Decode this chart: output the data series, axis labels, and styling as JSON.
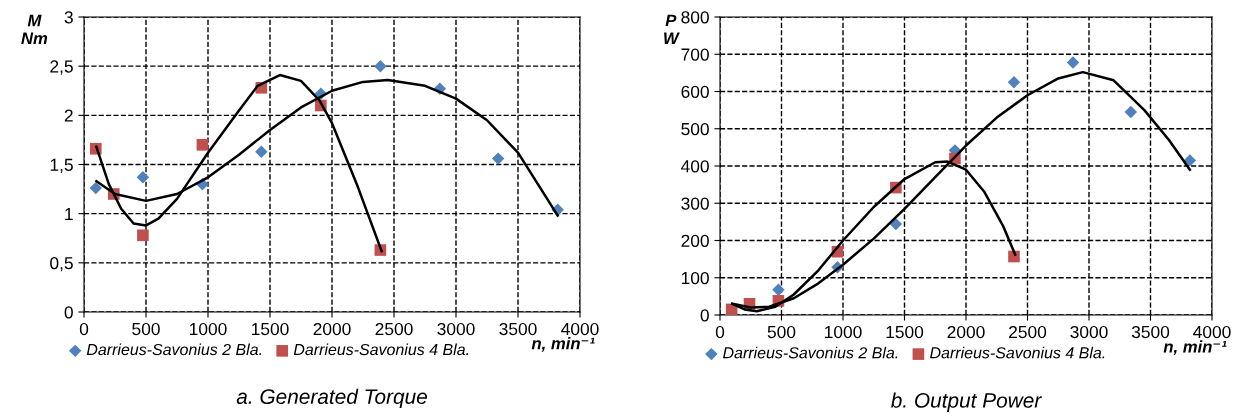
{
  "chart_data": [
    {
      "type": "scatter",
      "title": "a. Generated Torque",
      "xlabel": "n, min⁻¹",
      "ylabel": "M\nNm",
      "xlim": [
        0,
        4000
      ],
      "xticks": [
        0,
        500,
        1000,
        1500,
        2000,
        2500,
        3000,
        3500,
        4000
      ],
      "ylim": [
        0,
        3
      ],
      "yticks": [
        0,
        {
          "value": 0.5,
          "label": "0,5"
        },
        1,
        {
          "value": 1.5,
          "label": "1,5"
        },
        2,
        {
          "value": 2.5,
          "label": "2,5"
        },
        3
      ],
      "grid": true,
      "legend": "bottom",
      "series": [
        {
          "name": "Darrieus-Savonius 2 Bla.",
          "color": "#4f81bd",
          "marker": "diamond",
          "x": [
            95,
            475,
            955,
            1430,
            1910,
            2390,
            2870,
            3340,
            3820
          ],
          "values": [
            1.26,
            1.37,
            1.3,
            1.63,
            2.22,
            2.5,
            2.27,
            1.56,
            1.04
          ]
        },
        {
          "name": "Darrieus-Savonius 4 Bla.",
          "color": "#c0504d",
          "marker": "square",
          "x": [
            95,
            240,
            475,
            955,
            1430,
            1910,
            2390
          ],
          "values": [
            1.66,
            1.2,
            0.78,
            1.7,
            2.28,
            2.1,
            0.63
          ]
        },
        {
          "type": "line",
          "color": "#000000",
          "marker": "none",
          "line_style": "solid",
          "x": [
            100,
            250,
            500,
            750,
            1000,
            1250,
            1500,
            1750,
            2000,
            2250,
            2450,
            2750,
            3000,
            3250,
            3500,
            3820
          ],
          "values": [
            1.33,
            1.2,
            1.13,
            1.2,
            1.37,
            1.6,
            1.85,
            2.08,
            2.25,
            2.34,
            2.36,
            2.3,
            2.17,
            1.95,
            1.62,
            0.98
          ]
        },
        {
          "type": "line",
          "color": "#000000",
          "marker": "none",
          "line_style": "solid",
          "x": [
            100,
            200,
            300,
            400,
            500,
            600,
            750,
            1000,
            1250,
            1400,
            1580,
            1750,
            1900,
            2000,
            2200,
            2400
          ],
          "values": [
            1.68,
            1.3,
            1.05,
            0.9,
            0.88,
            0.95,
            1.15,
            1.62,
            2.05,
            2.3,
            2.41,
            2.35,
            2.15,
            1.92,
            1.3,
            0.62
          ]
        }
      ]
    },
    {
      "type": "scatter",
      "title": "b. Output Power",
      "xlabel": "n, min⁻¹",
      "ylabel": "P\nW",
      "xlim": [
        0,
        4000
      ],
      "xticks": [
        0,
        500,
        1000,
        1500,
        2000,
        2500,
        3000,
        3500,
        4000
      ],
      "ylim": [
        0,
        800
      ],
      "yticks": [
        0,
        100,
        200,
        300,
        400,
        500,
        600,
        700,
        800
      ],
      "grid": true,
      "legend": "bottom",
      "series": [
        {
          "name": "Darrieus-Savonius 2 Bla.",
          "color": "#4f81bd",
          "marker": "diamond",
          "x": [
            475,
            955,
            1430,
            1910,
            2390,
            2870,
            3340,
            3820
          ],
          "values": [
            68,
            128,
            244,
            442,
            625,
            678,
            545,
            415
          ]
        },
        {
          "name": "Darrieus-Savonius 4 Bla.",
          "color": "#c0504d",
          "marker": "square",
          "x": [
            95,
            240,
            475,
            955,
            1430,
            1910,
            2390
          ],
          "values": [
            15,
            30,
            38,
            170,
            342,
            420,
            157
          ]
        },
        {
          "type": "line",
          "color": "#000000",
          "marker": "none",
          "line_style": "solid",
          "x": [
            100,
            250,
            400,
            600,
            800,
            1000,
            1250,
            1500,
            1750,
            2000,
            2250,
            2500,
            2750,
            2950,
            3200,
            3450,
            3650,
            3820
          ],
          "values": [
            30,
            20,
            22,
            45,
            85,
            135,
            205,
            285,
            370,
            455,
            530,
            590,
            635,
            652,
            630,
            550,
            470,
            390
          ]
        },
        {
          "type": "line",
          "color": "#000000",
          "marker": "none",
          "line_style": "solid",
          "x": [
            100,
            200,
            300,
            450,
            600,
            800,
            1000,
            1250,
            1500,
            1750,
            1850,
            2000,
            2150,
            2300,
            2400
          ],
          "values": [
            30,
            15,
            10,
            22,
            55,
            120,
            200,
            290,
            365,
            410,
            412,
            390,
            330,
            240,
            162
          ]
        }
      ]
    }
  ]
}
